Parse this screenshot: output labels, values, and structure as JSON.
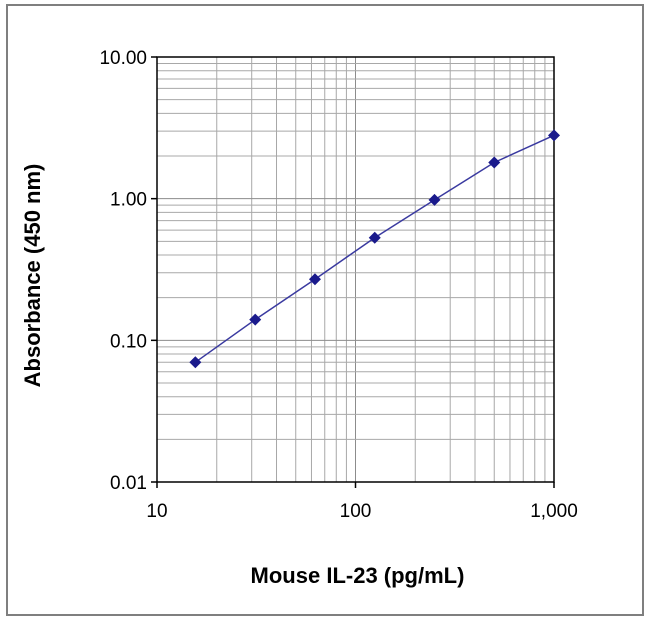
{
  "chart_data": {
    "type": "line",
    "title": "",
    "xlabel": "Mouse IL-23 (pg/mL)",
    "ylabel": "Absorbance (450 nm)",
    "x_scale": "log",
    "y_scale": "log",
    "xlim": [
      10,
      1000
    ],
    "ylim": [
      0.01,
      10
    ],
    "x_ticks": [
      {
        "value": 10,
        "label": "10"
      },
      {
        "value": 100,
        "label": "100"
      },
      {
        "value": 1000,
        "label": "1,000"
      }
    ],
    "y_ticks": [
      {
        "value": 10,
        "label": "10.00"
      },
      {
        "value": 1,
        "label": "1.00"
      },
      {
        "value": 0.1,
        "label": "0.10"
      },
      {
        "value": 0.01,
        "label": "0.01"
      }
    ],
    "grid": true,
    "legend": "none",
    "series": [
      {
        "x": [
          15.6,
          31.25,
          62.5,
          125,
          250,
          500,
          1000
        ],
        "y": [
          0.07,
          0.14,
          0.27,
          0.53,
          0.98,
          1.8,
          2.8
        ],
        "color": "#3a3aa0",
        "marker": "diamond",
        "marker_color": "#1a1a8c"
      }
    ]
  }
}
